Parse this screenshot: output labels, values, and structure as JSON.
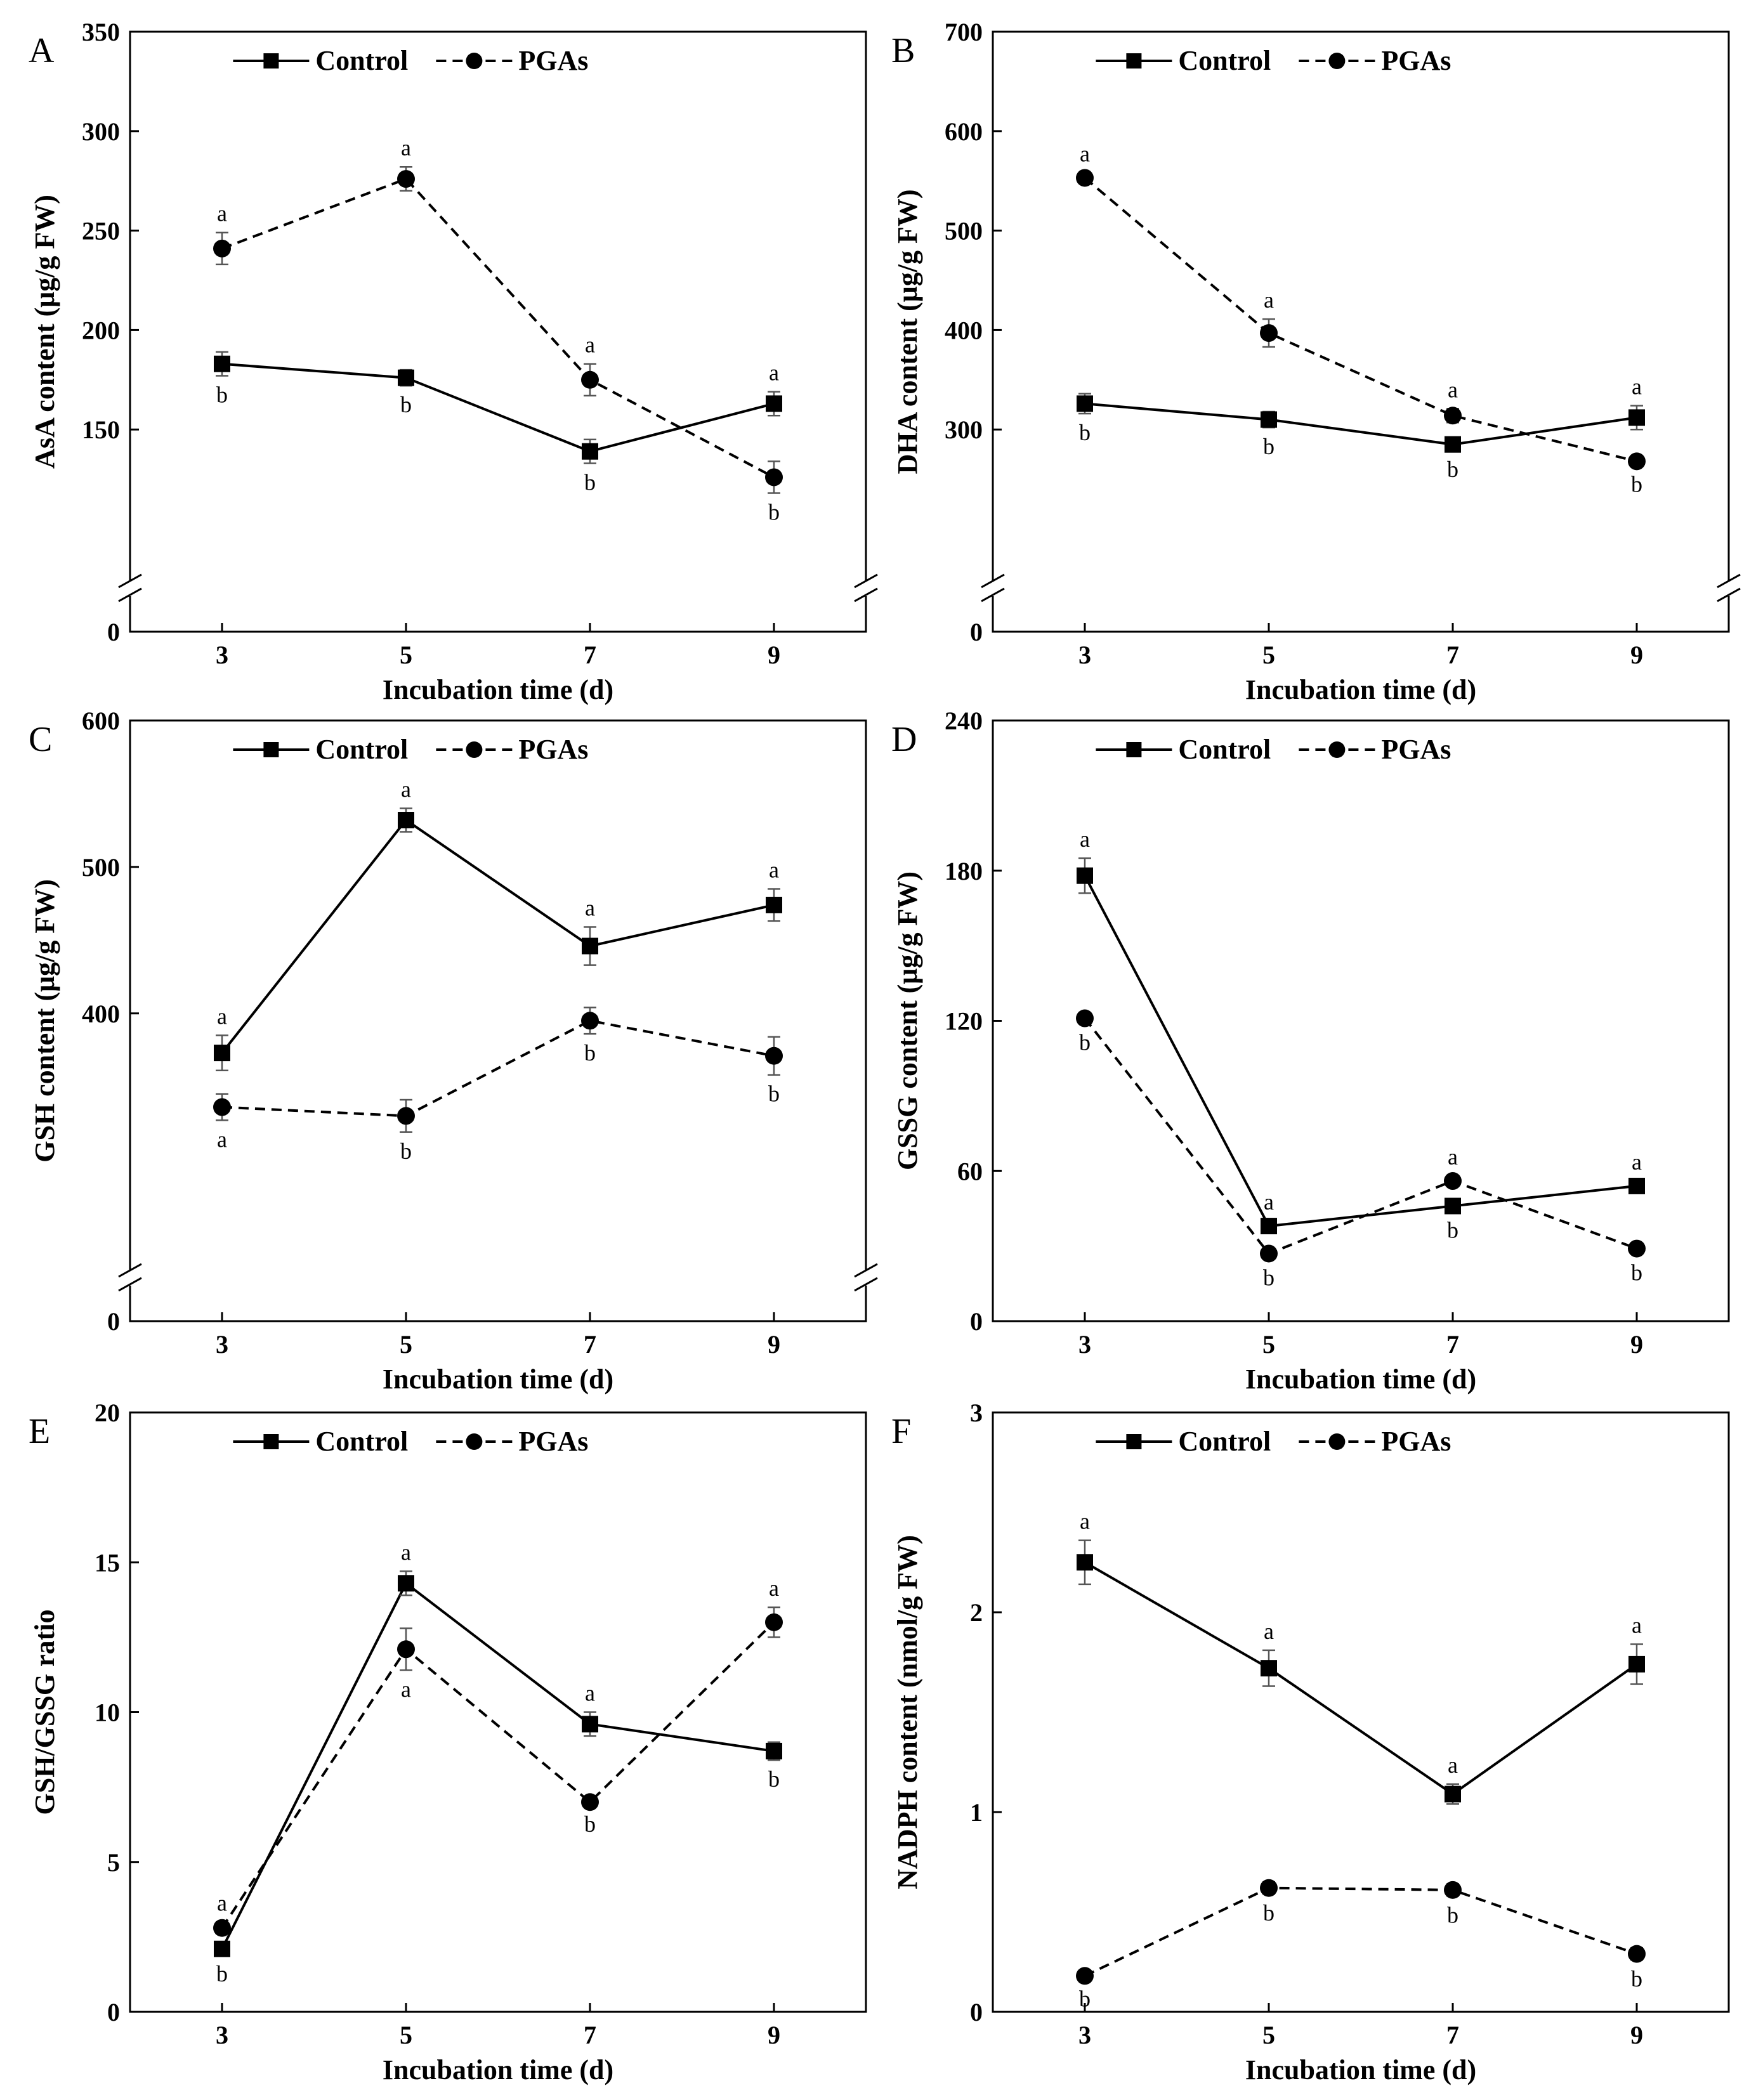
{
  "chart_data": [
    {
      "type": "line",
      "panel": "A",
      "xlabel": "Incubation time (d)",
      "ylabel": "AsA content (μg/g FW)",
      "x": [
        3,
        5,
        7,
        9
      ],
      "ylim": [
        0,
        350
      ],
      "axis_break": {
        "low": 0,
        "high": 100
      },
      "yticks": [
        0,
        150,
        200,
        250,
        300,
        350
      ],
      "legend": [
        "Control",
        "PGAs"
      ],
      "series": [
        {
          "name": "Control",
          "style": "solid",
          "marker": "square",
          "values": [
            183,
            176,
            139,
            163
          ],
          "errors": [
            6,
            4,
            6,
            6
          ],
          "labels": [
            "b",
            "b",
            "b",
            "a"
          ]
        },
        {
          "name": "PGAs",
          "style": "dashed",
          "marker": "circle",
          "values": [
            241,
            276,
            175,
            126
          ],
          "errors": [
            8,
            6,
            8,
            8
          ],
          "labels": [
            "a",
            "a",
            "a",
            "b"
          ]
        }
      ]
    },
    {
      "type": "line",
      "panel": "B",
      "xlabel": "Incubation time (d)",
      "ylabel": "DHA content (μg/g FW)",
      "x": [
        3,
        5,
        7,
        9
      ],
      "ylim": [
        0,
        700
      ],
      "axis_break": {
        "low": 0,
        "high": 200
      },
      "yticks": [
        0,
        300,
        400,
        500,
        600,
        700
      ],
      "legend": [
        "Control",
        "PGAs"
      ],
      "series": [
        {
          "name": "Control",
          "style": "solid",
          "marker": "square",
          "values": [
            326,
            310,
            285,
            312
          ],
          "errors": [
            10,
            8,
            6,
            12
          ],
          "labels": [
            "b",
            "b",
            "b",
            "a"
          ]
        },
        {
          "name": "PGAs",
          "style": "dashed",
          "marker": "circle",
          "values": [
            553,
            397,
            314,
            268
          ],
          "errors": [
            5,
            14,
            7,
            4
          ],
          "labels": [
            "a",
            "a",
            "a",
            "b"
          ]
        }
      ]
    },
    {
      "type": "line",
      "panel": "C",
      "xlabel": "Incubation time (d)",
      "ylabel": "GSH content (μg/g FW)",
      "x": [
        3,
        5,
        7,
        9
      ],
      "ylim": [
        0,
        600
      ],
      "axis_break": {
        "low": 0,
        "high": 260
      },
      "yticks": [
        0,
        400,
        500,
        600
      ],
      "legend": [
        "Control",
        "PGAs"
      ],
      "series": [
        {
          "name": "Control",
          "style": "solid",
          "marker": "square",
          "values": [
            373,
            532,
            446,
            474
          ],
          "errors": [
            12,
            8,
            13,
            11
          ],
          "labels": [
            "a",
            "a",
            "a",
            "a"
          ]
        },
        {
          "name": "PGAs",
          "style": "dashed",
          "marker": "circle",
          "values": [
            336,
            330,
            395,
            371
          ],
          "errors": [
            9,
            11,
            9,
            13
          ],
          "labels": [
            "a",
            "b",
            "b",
            "b"
          ]
        }
      ]
    },
    {
      "type": "line",
      "panel": "D",
      "xlabel": "Incubation time (d)",
      "ylabel": "GSSG content (μg/g FW)",
      "x": [
        3,
        5,
        7,
        9
      ],
      "ylim": [
        0,
        240
      ],
      "yticks": [
        0,
        60,
        120,
        180,
        240
      ],
      "legend": [
        "Control",
        "PGAs"
      ],
      "series": [
        {
          "name": "Control",
          "style": "solid",
          "marker": "square",
          "values": [
            178,
            38,
            46,
            54
          ],
          "errors": [
            7,
            2,
            2,
            2
          ],
          "labels": [
            "a",
            "a",
            "b",
            "a"
          ]
        },
        {
          "name": "PGAs",
          "style": "dashed",
          "marker": "circle",
          "values": [
            121,
            27,
            56,
            29
          ],
          "errors": [
            2,
            2,
            2,
            2
          ],
          "labels": [
            "b",
            "b",
            "a",
            "b"
          ]
        }
      ]
    },
    {
      "type": "line",
      "panel": "E",
      "xlabel": "Incubation time (d)",
      "ylabel": "GSH/GSSG ratio",
      "x": [
        3,
        5,
        7,
        9
      ],
      "ylim": [
        0,
        20
      ],
      "yticks": [
        0,
        5,
        10,
        15,
        20
      ],
      "legend": [
        "Control",
        "PGAs"
      ],
      "series": [
        {
          "name": "Control",
          "style": "solid",
          "marker": "square",
          "values": [
            2.1,
            14.3,
            9.6,
            8.7
          ],
          "errors": [
            0.2,
            0.4,
            0.4,
            0.3
          ],
          "labels": [
            "b",
            "a",
            "a",
            "b"
          ]
        },
        {
          "name": "PGAs",
          "style": "dashed",
          "marker": "circle",
          "values": [
            2.8,
            12.1,
            7.0,
            13.0
          ],
          "errors": [
            0.2,
            0.7,
            0.1,
            0.5
          ],
          "labels": [
            "a",
            "a",
            "b",
            "a"
          ]
        }
      ]
    },
    {
      "type": "line",
      "panel": "F",
      "xlabel": "Incubation time (d)",
      "ylabel": "NADPH content (nmol/g FW)",
      "x": [
        3,
        5,
        7,
        9
      ],
      "ylim": [
        0,
        3
      ],
      "yticks": [
        0,
        1,
        2,
        3
      ],
      "legend": [
        "Control",
        "PGAs"
      ],
      "series": [
        {
          "name": "Control",
          "style": "solid",
          "marker": "square",
          "values": [
            2.25,
            1.72,
            1.09,
            1.74
          ],
          "errors": [
            0.11,
            0.09,
            0.05,
            0.1
          ],
          "labels": [
            "a",
            "a",
            "a",
            "a"
          ]
        },
        {
          "name": "PGAs",
          "style": "dashed",
          "marker": "circle",
          "values": [
            0.18,
            0.62,
            0.61,
            0.29
          ],
          "errors": [
            0.02,
            0.03,
            0.03,
            0.03
          ],
          "labels": [
            "b",
            "b",
            "b",
            "b"
          ]
        }
      ]
    }
  ]
}
